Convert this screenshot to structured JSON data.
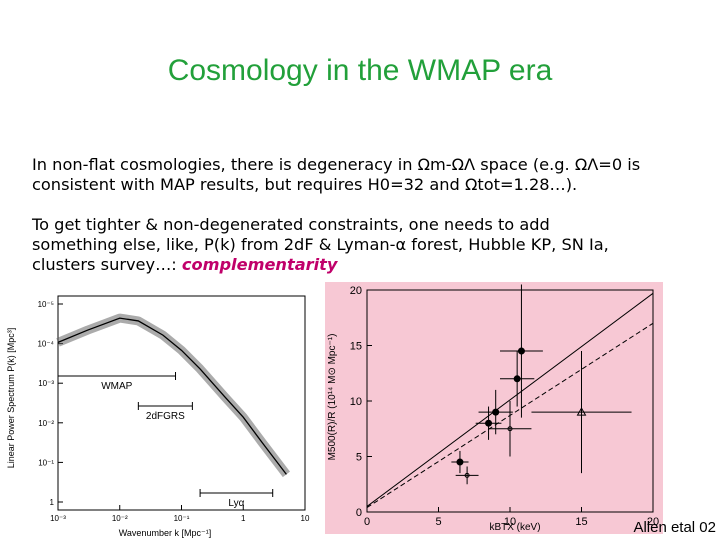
{
  "slide": {
    "title": "Cosmology in the WMAP era",
    "paragraph1": "In non-flat cosmologies, there is degeneracy in Ωm-ΩΛ space (e.g. ΩΛ=0 is\nconsistent with MAP results, but requires H0=32 and Ωtot=1.28…).",
    "paragraph2": "To get tighter & non-degenerated constraints, one needs to add\nsomething else, like, P(k) from 2dF & Lyman-α forest, Hubble KP, SN Ia,\nclusters survey…: ",
    "paragraph2_highlight": "complementarity",
    "credit": "Allen etal 02",
    "highlight_color": "#c0006a",
    "title_color": "#22a03a"
  },
  "chart_data": [
    {
      "type": "line",
      "xlabel": "Wavenumber k [Mpc⁻¹]",
      "ylabel": "Linear Power Spectrum P(k) [Mpc³]",
      "x_scale": "log",
      "y_scale": "log",
      "xlim": [
        0.001,
        10
      ],
      "ylim": [
        0.1,
        100000
      ],
      "x_ticks": [
        "10⁻³",
        "10⁻²",
        "10⁻¹",
        "1",
        "10"
      ],
      "y_ticks": [
        "10⁻⁵",
        "10⁻⁴",
        "10⁻³",
        "10⁻²",
        "10⁻¹",
        "1"
      ],
      "series": [
        {
          "x": [
            0.001,
            0.003,
            0.01,
            0.02,
            0.05,
            0.1,
            0.2,
            0.5,
            1,
            2,
            5
          ],
          "y": [
            5000,
            11000,
            24000,
            20000,
            8000,
            3000,
            900,
            150,
            40,
            8,
            1
          ]
        }
      ],
      "ranges": [
        {
          "label": "WMAP",
          "k_min": 0.001,
          "k_max": 0.08
        },
        {
          "label": "2dFGRS",
          "k_min": 0.02,
          "k_max": 0.15
        },
        {
          "label": "Lyα",
          "k_min": 0.2,
          "k_max": 3
        }
      ]
    },
    {
      "type": "scatter",
      "xlabel": "kBTX (keV)",
      "ylabel": "M500(R)/R (10¹⁴ M⊙ Mpc⁻¹)",
      "xlim": [
        0,
        20
      ],
      "ylim": [
        0,
        20
      ],
      "x_ticks": [
        0,
        5,
        10,
        15,
        20
      ],
      "y_ticks": [
        0,
        5,
        10,
        15,
        20
      ],
      "background": "#f7c8d4",
      "points": [
        {
          "x": 6.5,
          "y": 4.5,
          "xerr": 0.6,
          "yerr": 1.0,
          "marker": "filled"
        },
        {
          "x": 8.5,
          "y": 8.0,
          "xerr": 0.9,
          "yerr": 1.5,
          "marker": "filled"
        },
        {
          "x": 9.0,
          "y": 9.0,
          "xerr": 1.2,
          "yerr": 2.0,
          "marker": "filled"
        },
        {
          "x": 10.5,
          "y": 12.0,
          "xerr": 1.2,
          "yerr": 2.5,
          "marker": "filled"
        },
        {
          "x": 10.8,
          "y": 14.5,
          "xerr": 1.5,
          "yerr": 6.0,
          "marker": "filled"
        },
        {
          "x": 10.0,
          "y": 7.5,
          "xerr": 1.5,
          "yerr": 2.5,
          "marker": "cross"
        },
        {
          "x": 15.0,
          "y": 9.0,
          "xerr": 3.5,
          "yerr": 5.5,
          "marker": "open-triangle"
        },
        {
          "x": 7.0,
          "y": 3.3,
          "xerr": 0.8,
          "yerr": 0.8,
          "marker": "cross"
        }
      ],
      "fit_lines": [
        {
          "style": "solid",
          "slope": 0.96,
          "intercept": 0.5
        },
        {
          "style": "dashed",
          "slope": 0.83,
          "intercept": 0.4
        }
      ]
    }
  ]
}
